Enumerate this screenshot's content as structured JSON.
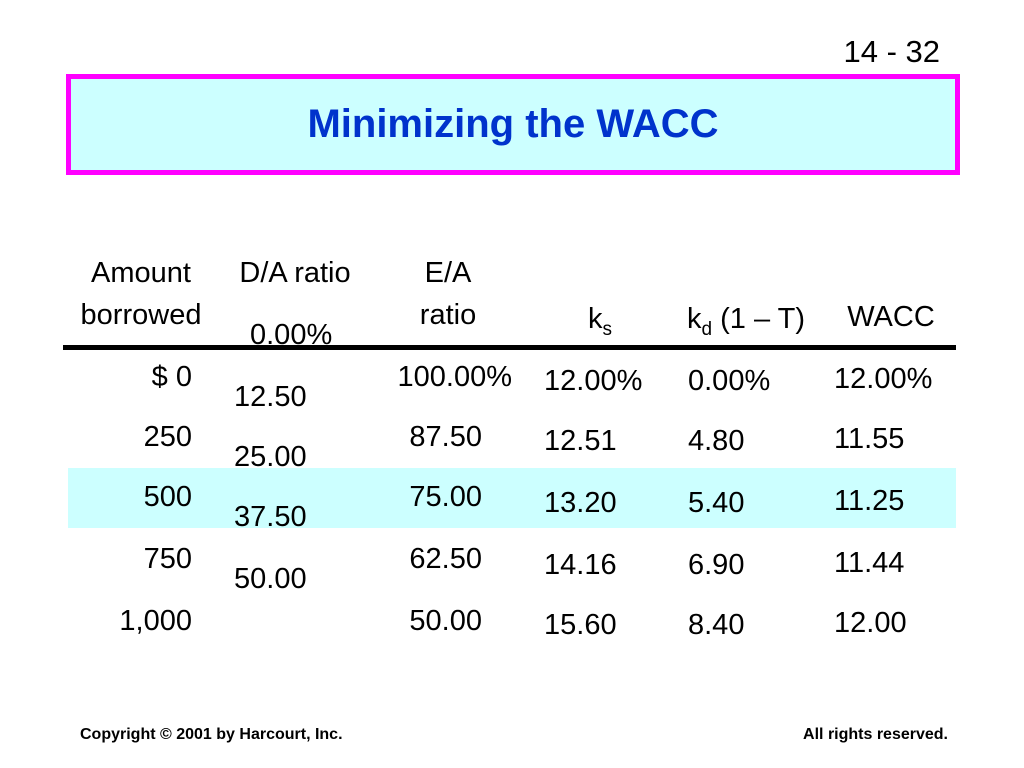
{
  "slide_number": "14 - 32",
  "title": "Minimizing the WACC",
  "headers": {
    "amount_line1": "Amount",
    "amount_line2": "borrowed",
    "da_ratio": "D/A ratio",
    "ea_line1": "E/A",
    "ea_line2": "ratio",
    "ks_base": "k",
    "ks_sub": "s",
    "kd_base": "k",
    "kd_sub": "d",
    "kd_tail": " (1 – T)",
    "wacc": "WACC"
  },
  "columns": {
    "amount": [
      "$        0",
      "250",
      "500",
      "750",
      "1,000"
    ],
    "da_ratio": [
      "0.00%",
      "12.50",
      "25.00",
      "37.50",
      "50.00"
    ],
    "ea_ratio": [
      "100.00%",
      "87.50",
      "75.00",
      "62.50",
      "50.00"
    ],
    "ks": [
      "12.00%",
      "12.51",
      "13.20",
      "14.16",
      "15.60"
    ],
    "kd_after_tax": [
      "0.00%",
      "4.80",
      "5.40",
      "6.90",
      "8.40"
    ],
    "wacc": [
      "12.00%",
      "11.55",
      "11.25",
      "11.44",
      "12.00"
    ]
  },
  "highlight_row_index": 2,
  "colors": {
    "title_border": "#ff00ff",
    "title_fill": "#ccffff",
    "title_text": "#0033cc",
    "highlight_fill": "#ccffff"
  },
  "footer": {
    "left": "Copyright © 2001 by Harcourt, Inc.",
    "right": "All rights reserved."
  }
}
